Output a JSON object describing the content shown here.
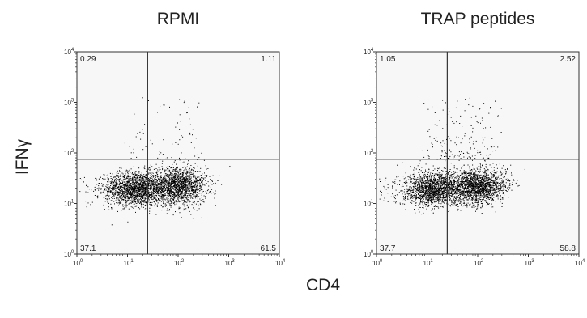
{
  "y_label": "IFNγ",
  "x_label": "CD4",
  "chart_data": [
    {
      "type": "scatter",
      "title": "RPMI",
      "xlabel": "CD4",
      "ylabel": "IFNγ",
      "scale": "log",
      "xlim": [
        1,
        10000
      ],
      "ylim": [
        1,
        10000
      ],
      "tick_labels": [
        "10^0",
        "10^1",
        "10^2",
        "10^3",
        "10^4"
      ],
      "gate": {
        "x": 25,
        "y": 75
      },
      "quadrants": {
        "upper_left": "0.29",
        "upper_right": "1.11",
        "lower_left": "37.1",
        "lower_right": "61.5"
      }
    },
    {
      "type": "scatter",
      "title": "TRAP peptides",
      "xlabel": "CD4",
      "ylabel": "IFNγ",
      "scale": "log",
      "xlim": [
        1,
        10000
      ],
      "ylim": [
        1,
        10000
      ],
      "tick_labels": [
        "10^0",
        "10^1",
        "10^2",
        "10^3",
        "10^4"
      ],
      "gate": {
        "x": 25,
        "y": 75
      },
      "quadrants": {
        "upper_left": "1.05",
        "upper_right": "2.52",
        "lower_left": "37.7",
        "lower_right": "58.8"
      }
    }
  ]
}
